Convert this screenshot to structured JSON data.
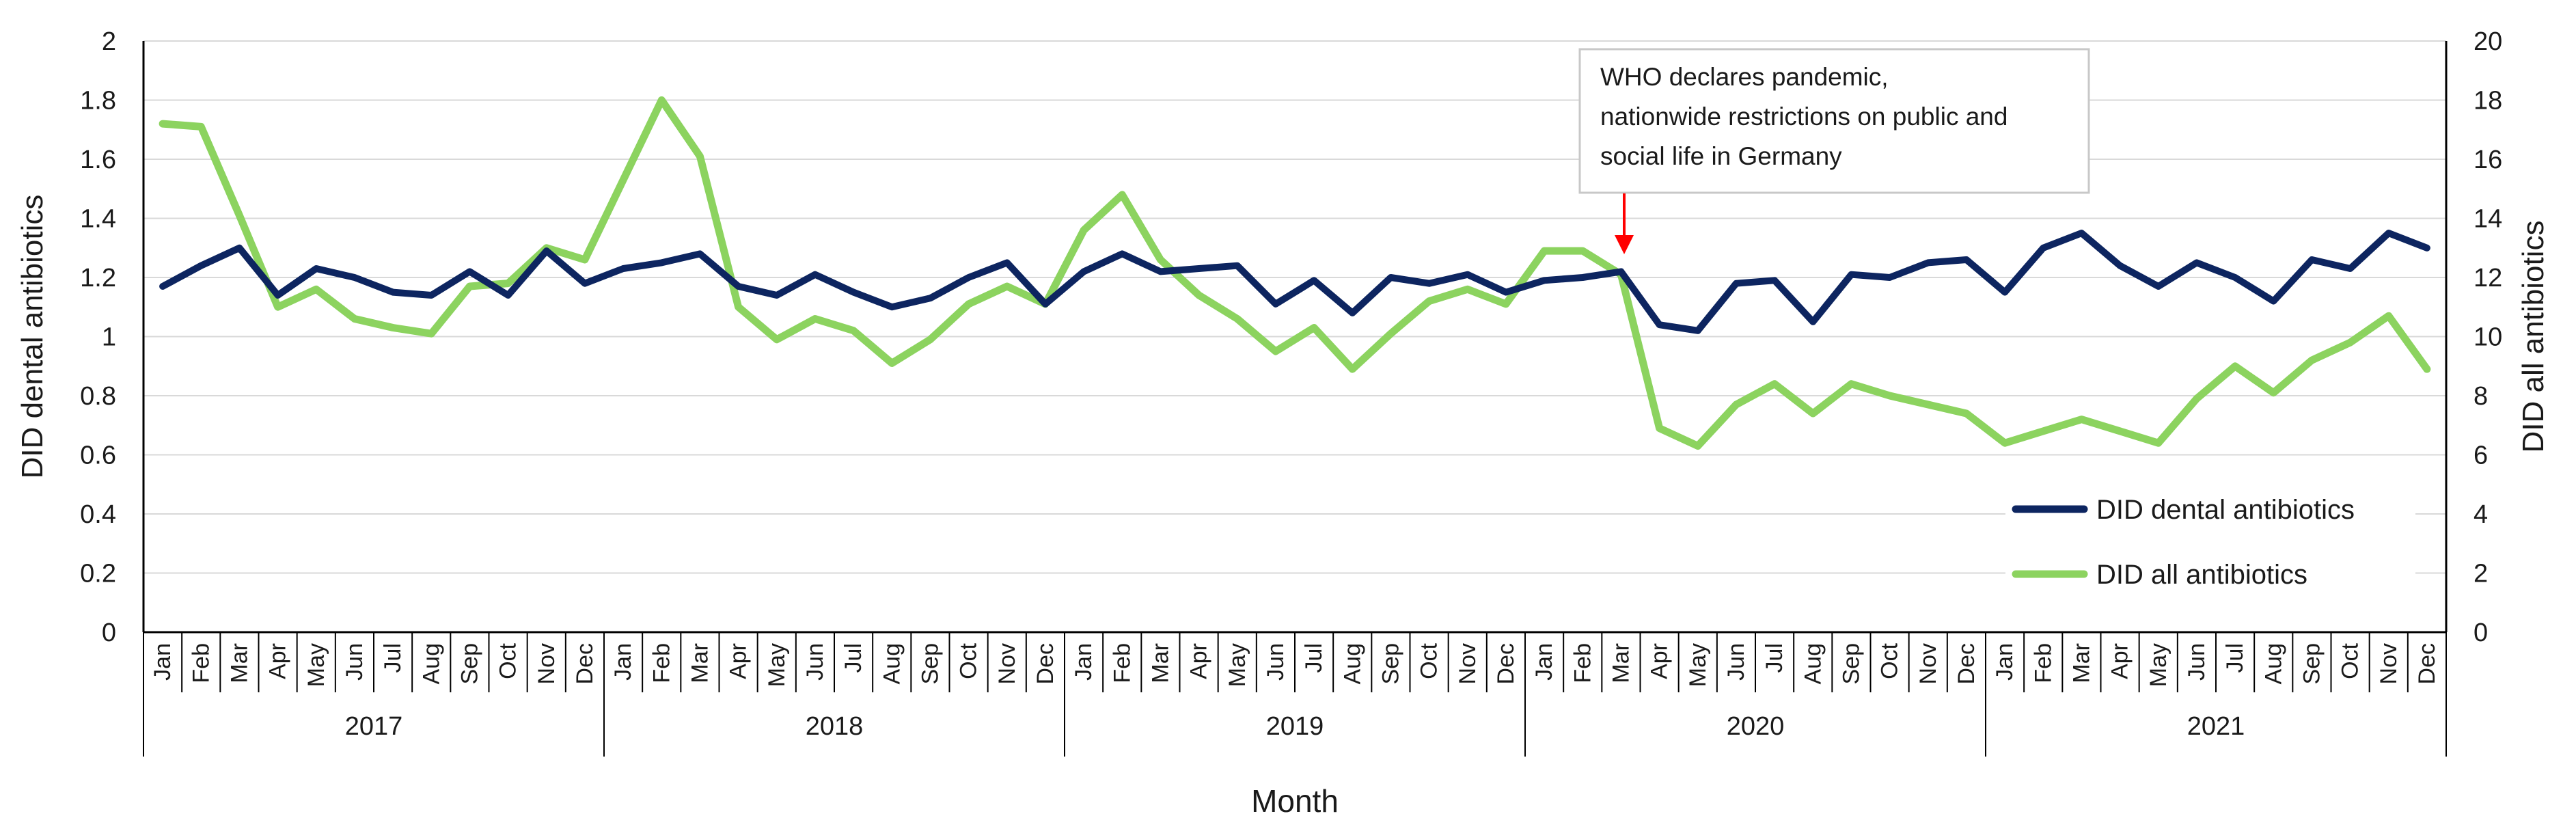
{
  "chart_data": {
    "type": "line",
    "title": "",
    "xlabel": "Month",
    "ylabel_left": "DID dental antibiotics",
    "ylabel_right": "DID all antibiotics",
    "ylim_left": [
      0,
      2
    ],
    "ylim_right": [
      0,
      20
    ],
    "yticks_left": [
      "0",
      "0.2",
      "0.4",
      "0.6",
      "0.8",
      "1",
      "1.2",
      "1.4",
      "1.6",
      "1.8",
      "2"
    ],
    "yticks_right": [
      "0",
      "2",
      "4",
      "6",
      "8",
      "10",
      "12",
      "14",
      "16",
      "18",
      "20"
    ],
    "months": [
      "Jan",
      "Feb",
      "Mar",
      "Apr",
      "May",
      "Jun",
      "Jul",
      "Aug",
      "Sep",
      "Oct",
      "Nov",
      "Dec"
    ],
    "years": [
      "2017",
      "2018",
      "2019",
      "2020",
      "2021"
    ],
    "legend_position": "bottom-right",
    "series": [
      {
        "name": "DID dental antibiotics",
        "axis": "left",
        "color": "#0d2560",
        "values": [
          1.17,
          1.24,
          1.3,
          1.14,
          1.23,
          1.2,
          1.15,
          1.14,
          1.22,
          1.14,
          1.29,
          1.18,
          1.23,
          1.25,
          1.28,
          1.17,
          1.14,
          1.21,
          1.15,
          1.1,
          1.13,
          1.2,
          1.25,
          1.11,
          1.22,
          1.28,
          1.22,
          1.23,
          1.24,
          1.11,
          1.19,
          1.08,
          1.2,
          1.18,
          1.21,
          1.15,
          1.19,
          1.2,
          1.22,
          1.04,
          1.02,
          1.18,
          1.19,
          1.05,
          1.21,
          1.2,
          1.25,
          1.26,
          1.15,
          1.3,
          1.35,
          1.24,
          1.17,
          1.25,
          1.2,
          1.12,
          1.26,
          1.23,
          1.35,
          1.3
        ]
      },
      {
        "name": "DID all antibiotics",
        "axis": "right",
        "color": "#8cd35f",
        "values": [
          17.2,
          17.1,
          14.1,
          11.0,
          11.6,
          10.6,
          10.3,
          10.1,
          11.7,
          11.8,
          13.0,
          12.6,
          15.3,
          18.0,
          16.1,
          11.0,
          9.9,
          10.6,
          10.2,
          9.1,
          9.9,
          11.1,
          11.7,
          11.1,
          13.6,
          14.8,
          12.6,
          11.4,
          10.6,
          9.5,
          10.3,
          8.9,
          10.1,
          11.2,
          11.6,
          11.1,
          12.9,
          12.9,
          12.1,
          6.9,
          6.3,
          7.7,
          8.4,
          7.4,
          8.4,
          8.0,
          7.7,
          7.4,
          6.4,
          6.8,
          7.2,
          6.8,
          6.4,
          7.9,
          9.0,
          8.1,
          9.2,
          9.8,
          10.7,
          8.9
        ]
      }
    ],
    "annotations": [
      {
        "lines": [
          "WHO declares pandemic,",
          "nationwide restrictions on public and",
          "social life in Germany"
        ],
        "points_to": "2020-Mar",
        "arrow_color": "#ff0000"
      }
    ]
  }
}
